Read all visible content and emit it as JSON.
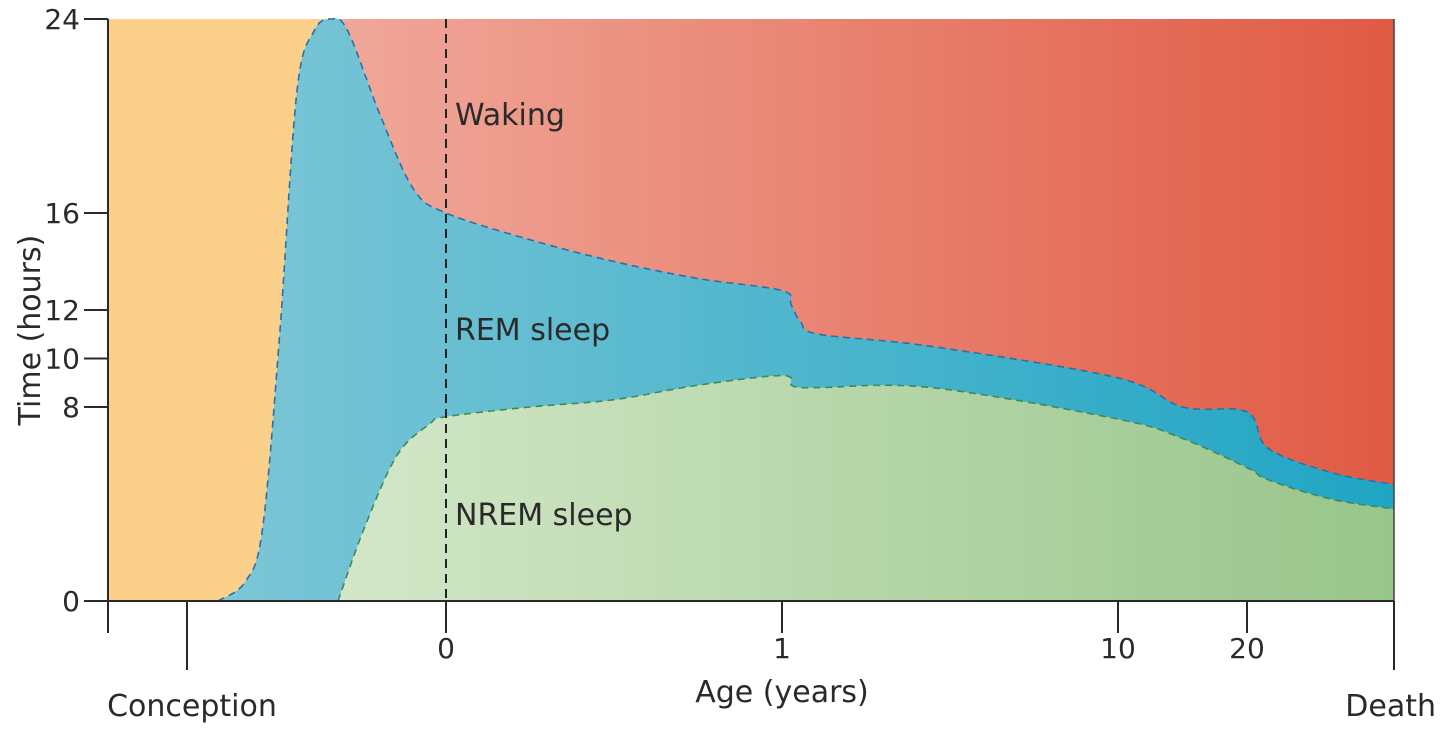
{
  "chart_data": {
    "type": "area",
    "title": "",
    "xlabel": "Age (years)",
    "ylabel": "Time (hours)",
    "ylim": [
      0,
      24
    ],
    "y_ticks": [
      0,
      8,
      10,
      12,
      16,
      24
    ],
    "x_ticks": [
      "0",
      "1",
      "10",
      "20"
    ],
    "x_events": [
      "Conception",
      "Death"
    ],
    "grid": false,
    "legend": "none (regions labelled directly)",
    "region_labels": {
      "waking": "Waking",
      "rem": "REM sleep",
      "nrem": "NREM sleep"
    },
    "colors": {
      "prenatal": "#fbd08a",
      "waking_start": "#f0a89a",
      "waking_end": "#e05a44",
      "rem": "#4bb3ca",
      "nrem_start": "#d3e7c8",
      "nrem_end": "#98c58a",
      "axis": "#2a2a2a"
    },
    "series": [
      {
        "name": "REM sleep",
        "x": [
          "-0.68",
          "-0.6",
          "-0.55",
          "-0.5",
          "-0.45",
          "-0.4",
          "-0.35",
          "-0.3",
          "-0.2",
          "-0.1",
          "0",
          "0.25",
          "0.5",
          "0.75",
          "1",
          "1.25",
          "1.5",
          "2",
          "5",
          "10",
          "15",
          "20",
          "30",
          "60",
          "90"
        ],
        "values": [
          0,
          0.8,
          3,
          11,
          21,
          23.5,
          24,
          23.5,
          20,
          17,
          16,
          14.9,
          14,
          13.3,
          12.8,
          12.2,
          11.5,
          11,
          10.5,
          9.2,
          8,
          7.8,
          6.3,
          5.3,
          4.8
        ]
      },
      {
        "name": "NREM sleep",
        "x": [
          "-0.33",
          "-0.25",
          "-0.15",
          "-0.05",
          "0",
          "0.25",
          "0.5",
          "0.75",
          "1",
          "1.25",
          "1.5",
          "2",
          "5",
          "10",
          "15",
          "20",
          "30",
          "60",
          "90"
        ],
        "values": [
          0,
          3,
          6,
          7.3,
          7.6,
          8.0,
          8.3,
          8.9,
          9.3,
          8.9,
          8.8,
          8.8,
          8.8,
          7.5,
          6.7,
          5.5,
          5.0,
          4.2,
          3.8
        ]
      }
    ]
  }
}
